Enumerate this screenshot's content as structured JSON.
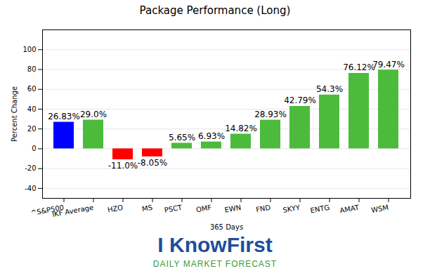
{
  "chart_data": {
    "type": "bar",
    "title": "Package Performance (Long)",
    "x_label": "365 Days",
    "y_label": "Percent Change",
    "categories": [
      "^S&P500",
      "IKF Average",
      "HZO",
      "MS",
      "PSCT",
      "OMF",
      "EWN",
      "FND",
      "SKYY",
      "ENTG",
      "AMAT",
      "WSM"
    ],
    "values": [
      26.83,
      29.0,
      -11.0,
      -8.05,
      5.65,
      6.93,
      14.82,
      28.93,
      42.79,
      54.3,
      76.12,
      79.47
    ],
    "value_labels": [
      "26.83%",
      "29.0%",
      "-11.0%",
      "-8.05%",
      "5.65%",
      "6.93%",
      "14.82%",
      "28.93%",
      "42.79%",
      "54.3%",
      "76.12%",
      "79.47%"
    ],
    "colors": [
      "#0000ff",
      "#4cbb3c",
      "#ff0000",
      "#ff0000",
      "#4cbb3c",
      "#4cbb3c",
      "#4cbb3c",
      "#4cbb3c",
      "#4cbb3c",
      "#4cbb3c",
      "#4cbb3c",
      "#4cbb3c"
    ],
    "ylim": [
      -50,
      120
    ],
    "yticks": [
      -40,
      -20,
      0,
      20,
      40,
      60,
      80,
      100
    ],
    "grid": true,
    "data_labels": true,
    "annotations": [
      "I KnowFirst",
      "DAILY MARKET FORECAST"
    ]
  }
}
